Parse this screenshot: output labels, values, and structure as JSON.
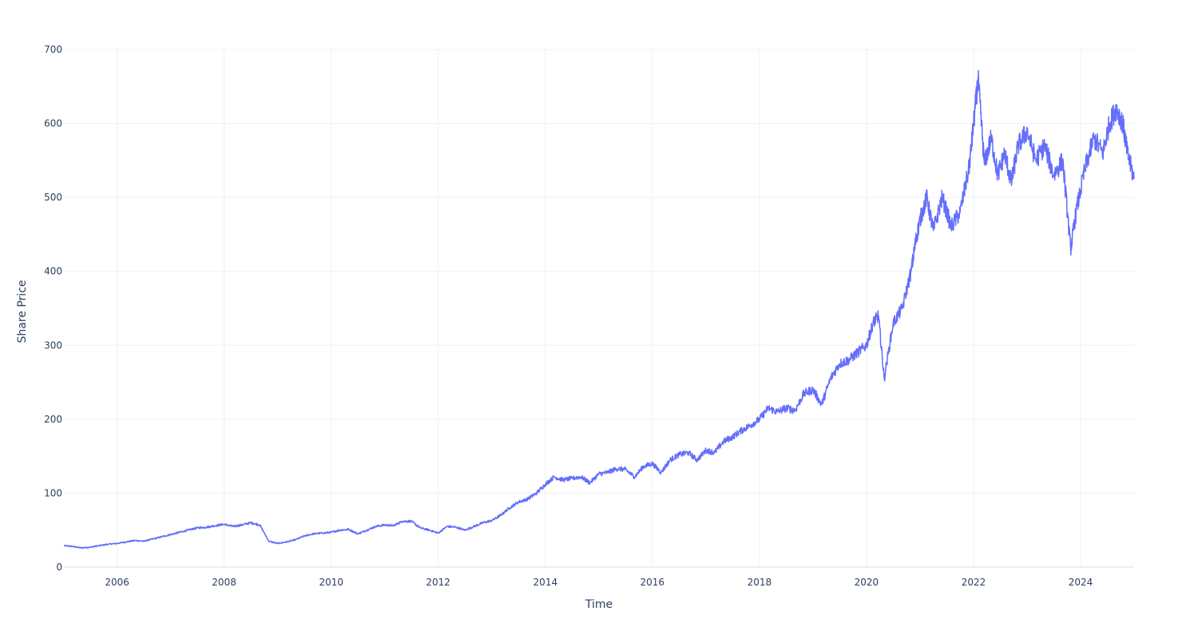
{
  "chart_data": {
    "type": "line",
    "title": "",
    "xlabel": "Time",
    "ylabel": "Share Price",
    "xlim": [
      "2005-01-03",
      "2024-12-31"
    ],
    "ylim": [
      0,
      700
    ],
    "x_ticks": [
      "2006",
      "2008",
      "2010",
      "2012",
      "2014",
      "2016",
      "2018",
      "2020",
      "2022",
      "2024"
    ],
    "y_ticks": [
      0,
      100,
      200,
      300,
      400,
      500,
      600,
      700
    ],
    "grid": true,
    "legend": "none",
    "series": [
      {
        "color": "#636efa",
        "x": [
          "2005-01-03",
          "2005-03-01",
          "2005-05-01",
          "2005-07-01",
          "2005-09-01",
          "2005-11-01",
          "2006-01-01",
          "2006-03-01",
          "2006-05-01",
          "2006-07-01",
          "2006-09-01",
          "2006-11-01",
          "2007-01-01",
          "2007-03-01",
          "2007-05-01",
          "2007-07-01",
          "2007-09-01",
          "2007-11-01",
          "2008-01-01",
          "2008-03-01",
          "2008-05-01",
          "2008-07-01",
          "2008-09-01",
          "2008-11-01",
          "2009-01-01",
          "2009-03-01",
          "2009-05-01",
          "2009-07-01",
          "2009-09-01",
          "2009-11-01",
          "2010-01-01",
          "2010-03-01",
          "2010-05-01",
          "2010-07-01",
          "2010-09-01",
          "2010-11-01",
          "2011-01-01",
          "2011-03-01",
          "2011-05-01",
          "2011-07-01",
          "2011-09-01",
          "2011-11-01",
          "2012-01-01",
          "2012-03-01",
          "2012-05-01",
          "2012-07-01",
          "2012-09-01",
          "2012-11-01",
          "2013-01-01",
          "2013-03-01",
          "2013-05-01",
          "2013-07-01",
          "2013-09-01",
          "2013-11-01",
          "2014-01-01",
          "2014-03-01",
          "2014-05-01",
          "2014-07-01",
          "2014-09-01",
          "2014-11-01",
          "2015-01-01",
          "2015-03-01",
          "2015-05-01",
          "2015-07-01",
          "2015-09-01",
          "2015-11-01",
          "2016-01-01",
          "2016-03-01",
          "2016-05-01",
          "2016-07-01",
          "2016-09-01",
          "2016-11-01",
          "2017-01-01",
          "2017-03-01",
          "2017-05-01",
          "2017-07-01",
          "2017-09-01",
          "2017-11-01",
          "2018-01-01",
          "2018-03-01",
          "2018-05-01",
          "2018-07-01",
          "2018-09-01",
          "2018-11-01",
          "2019-01-01",
          "2019-03-01",
          "2019-05-01",
          "2019-07-01",
          "2019-09-01",
          "2019-11-01",
          "2020-01-01",
          "2020-02-15",
          "2020-03-23",
          "2020-05-01",
          "2020-07-01",
          "2020-09-01",
          "2020-11-01",
          "2020-12-01",
          "2021-01-01",
          "2021-02-15",
          "2021-04-01",
          "2021-06-01",
          "2021-08-01",
          "2021-10-01",
          "2021-12-01",
          "2022-01-01",
          "2022-02-01",
          "2022-03-15",
          "2022-05-01",
          "2022-06-15",
          "2022-08-01",
          "2022-09-15",
          "2022-11-01",
          "2023-01-01",
          "2023-03-01",
          "2023-05-01",
          "2023-07-01",
          "2023-09-01",
          "2023-10-25",
          "2023-12-01",
          "2024-02-01",
          "2024-04-01",
          "2024-06-01",
          "2024-07-15",
          "2024-09-01",
          "2024-10-15",
          "2024-11-15",
          "2024-12-31"
        ],
        "values": [
          29,
          28,
          26,
          27,
          29,
          31,
          32,
          34,
          36,
          35,
          38,
          41,
          44,
          47,
          50,
          53,
          54,
          56,
          58,
          55,
          57,
          60,
          57,
          35,
          32,
          34,
          37,
          42,
          45,
          46,
          47,
          50,
          51,
          45,
          50,
          55,
          57,
          56,
          62,
          62,
          53,
          50,
          46,
          55,
          54,
          50,
          55,
          60,
          63,
          70,
          80,
          88,
          92,
          100,
          112,
          122,
          118,
          120,
          122,
          114,
          126,
          128,
          133,
          132,
          122,
          136,
          140,
          128,
          145,
          152,
          155,
          145,
          158,
          155,
          170,
          176,
          185,
          192,
          200,
          215,
          210,
          215,
          212,
          235,
          240,
          220,
          255,
          275,
          280,
          290,
          300,
          330,
          340,
          255,
          330,
          350,
          400,
          440,
          470,
          500,
          455,
          500,
          460,
          480,
          540,
          600,
          660,
          545,
          580,
          530,
          560,
          520,
          570,
          590,
          550,
          570,
          530,
          550,
          430,
          480,
          540,
          580,
          560,
          600,
          620,
          600,
          560,
          525
        ]
      }
    ]
  }
}
